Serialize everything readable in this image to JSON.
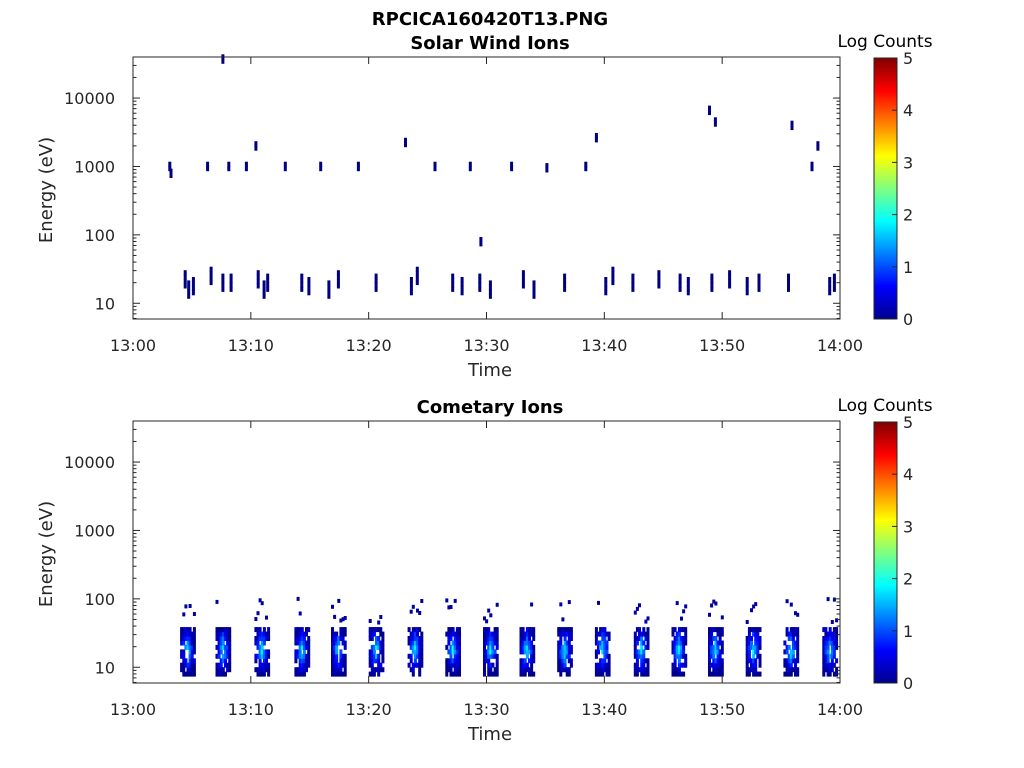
{
  "figure_title": "RPCICA160420T13.PNG",
  "colorbar": {
    "label": "Log Counts",
    "ticks": [
      "0",
      "1",
      "2",
      "3",
      "4",
      "5"
    ],
    "range": [
      0,
      5
    ],
    "colormap": "jet"
  },
  "chart_data": [
    {
      "type": "heatmap",
      "title": "Solar Wind Ions",
      "xlabel": "Time",
      "ylabel": "Energy (eV)",
      "x_ticks": [
        "13:00",
        "13:10",
        "13:20",
        "13:30",
        "13:40",
        "13:50",
        "14:00"
      ],
      "y_ticks": [
        "10",
        "100",
        "1000",
        "10000"
      ],
      "x_range_minutes": [
        0,
        60
      ],
      "y_range_log10": [
        0.77,
        4.6
      ],
      "y_scale": "log",
      "colorbar_range": [
        0,
        5
      ],
      "cells": [
        [
          3.0,
          3.0,
          0
        ],
        [
          3.1,
          2.9,
          0
        ],
        [
          6.2,
          3.0,
          0
        ],
        [
          7.5,
          4.57,
          0
        ],
        [
          8.0,
          3.0,
          0
        ],
        [
          9.5,
          3.0,
          0
        ],
        [
          10.3,
          3.3,
          0
        ],
        [
          12.8,
          3.0,
          0
        ],
        [
          15.8,
          3.0,
          0
        ],
        [
          19.0,
          3.0,
          0
        ],
        [
          23.0,
          3.35,
          0
        ],
        [
          25.5,
          3.0,
          0
        ],
        [
          28.5,
          3.0,
          0
        ],
        [
          29.4,
          1.9,
          0
        ],
        [
          32.0,
          3.0,
          0
        ],
        [
          35.0,
          2.98,
          0
        ],
        [
          38.3,
          3.0,
          0
        ],
        [
          39.2,
          3.42,
          0
        ],
        [
          48.8,
          3.82,
          0
        ],
        [
          49.3,
          3.65,
          0
        ],
        [
          55.8,
          3.6,
          0
        ],
        [
          57.5,
          3.0,
          0
        ],
        [
          58.0,
          3.3,
          0
        ],
        [
          4.3,
          1.35,
          0
        ],
        [
          4.6,
          1.2,
          0
        ],
        [
          5.0,
          1.25,
          0
        ],
        [
          6.5,
          1.4,
          0
        ],
        [
          7.5,
          1.3,
          0
        ],
        [
          8.2,
          1.3,
          0
        ],
        [
          10.5,
          1.35,
          0
        ],
        [
          11.0,
          1.2,
          0
        ],
        [
          11.3,
          1.3,
          0
        ],
        [
          14.2,
          1.3,
          0
        ],
        [
          14.8,
          1.25,
          0
        ],
        [
          16.5,
          1.2,
          0
        ],
        [
          17.3,
          1.35,
          0
        ],
        [
          20.5,
          1.3,
          0
        ],
        [
          23.5,
          1.25,
          0
        ],
        [
          24.0,
          1.4,
          0
        ],
        [
          27.0,
          1.3,
          0
        ],
        [
          27.8,
          1.25,
          0
        ],
        [
          29.3,
          1.3,
          0
        ],
        [
          30.2,
          1.2,
          0
        ],
        [
          33.0,
          1.35,
          0
        ],
        [
          33.9,
          1.2,
          0
        ],
        [
          36.5,
          1.3,
          0
        ],
        [
          40.0,
          1.25,
          0
        ],
        [
          40.6,
          1.4,
          0
        ],
        [
          42.3,
          1.3,
          0
        ],
        [
          44.5,
          1.35,
          0
        ],
        [
          46.3,
          1.3,
          0
        ],
        [
          47.0,
          1.25,
          0
        ],
        [
          49.0,
          1.3,
          0
        ],
        [
          50.5,
          1.35,
          0
        ],
        [
          52.0,
          1.25,
          0
        ],
        [
          53.0,
          1.3,
          0
        ],
        [
          55.5,
          1.3,
          0
        ],
        [
          59.0,
          1.25,
          0
        ],
        [
          59.4,
          1.3,
          0
        ]
      ]
    },
    {
      "type": "heatmap",
      "title": "Cometary Ions",
      "xlabel": "Time",
      "ylabel": "Energy (eV)",
      "x_ticks": [
        "13:00",
        "13:10",
        "13:20",
        "13:30",
        "13:40",
        "13:50",
        "14:00"
      ],
      "y_ticks": [
        "10",
        "100",
        "1000",
        "10000"
      ],
      "x_range_minutes": [
        0,
        60
      ],
      "y_range_log10": [
        0.77,
        4.6
      ],
      "y_scale": "log",
      "colorbar_range": [
        0,
        5
      ],
      "burst_times_minutes": [
        4.5,
        7.5,
        10.8,
        14.2,
        17.3,
        20.5,
        23.8,
        27.0,
        30.2,
        33.3,
        36.5,
        39.7,
        43.0,
        46.2,
        49.3,
        52.5,
        55.7,
        59.0
      ],
      "burst_peak_log_counts": 1.9,
      "burst_energy_range_log10": [
        0.9,
        1.55
      ]
    }
  ]
}
